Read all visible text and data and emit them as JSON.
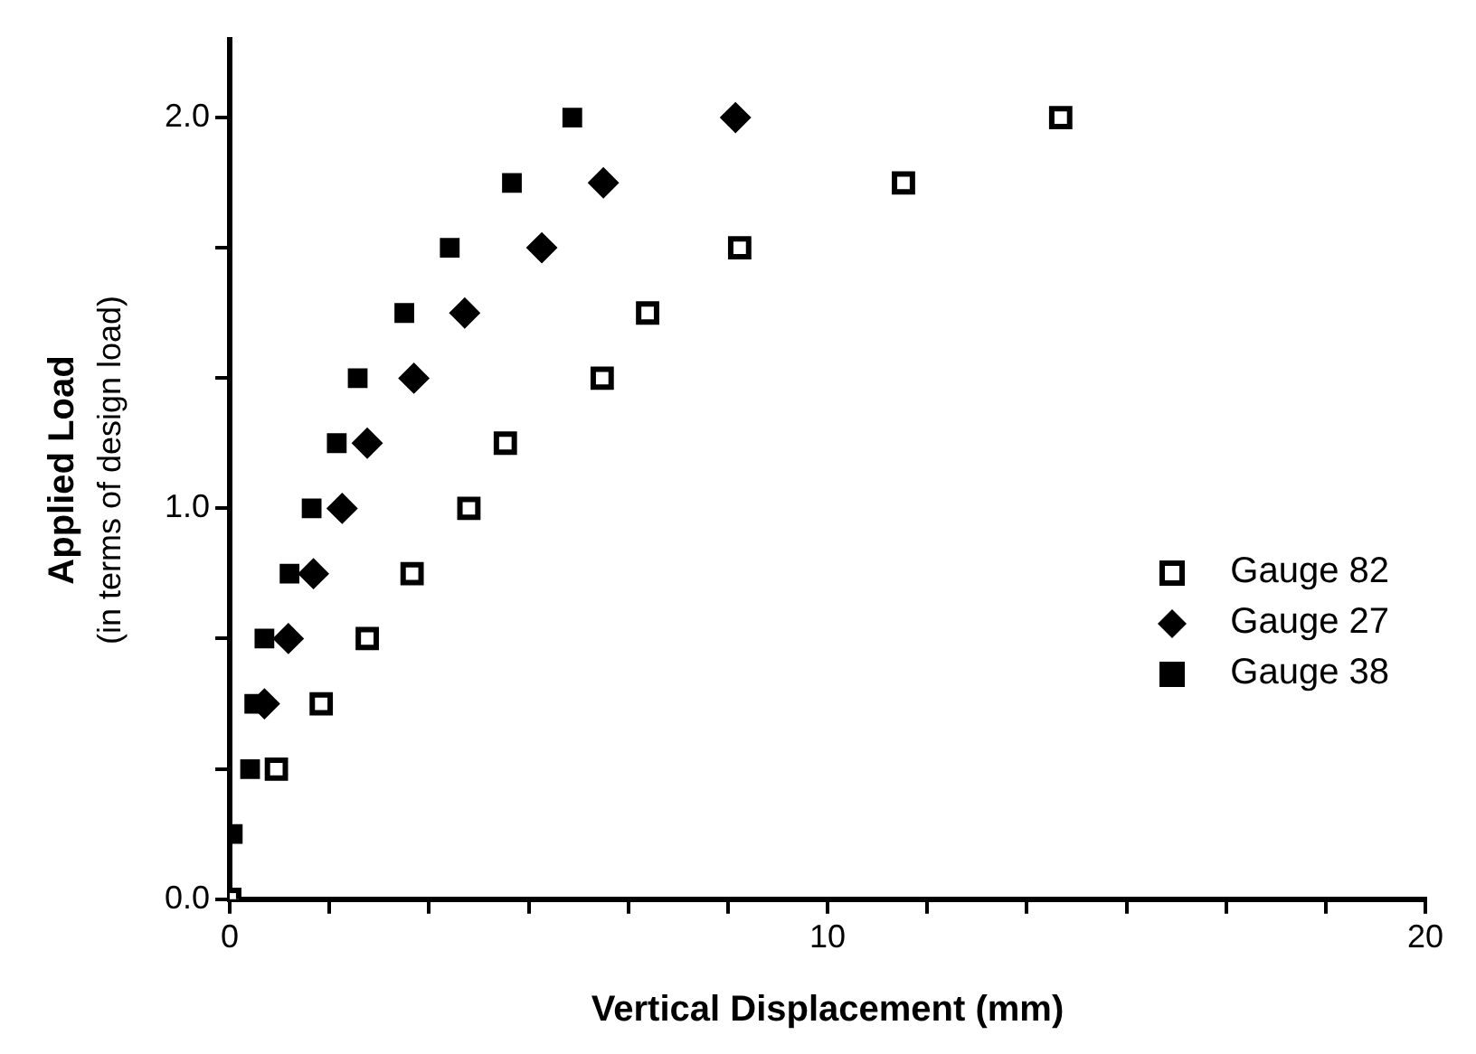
{
  "chart_data": {
    "type": "scatter",
    "xlabel": "Vertical Displacement (mm)",
    "ylabel": "Applied Load\n(in terms of design load)",
    "xlim": [
      0,
      20
    ],
    "ylim": [
      0,
      2.2
    ],
    "xticks": [
      0,
      {
        "value": 1.667,
        "label": null
      },
      {
        "value": 3.333,
        "label": null
      },
      {
        "value": 5,
        "label": null
      },
      {
        "value": 6.667,
        "label": null
      },
      {
        "value": 8.333,
        "label": null
      },
      10,
      {
        "value": 11.667,
        "label": null
      },
      {
        "value": 13.333,
        "label": null
      },
      {
        "value": 15,
        "label": null
      },
      {
        "value": 16.667,
        "label": null
      },
      {
        "value": 18.333,
        "label": null
      },
      20
    ],
    "yticks": [
      {
        "value": 0,
        "label": "0.0"
      },
      {
        "value": 0.333,
        "label": null
      },
      {
        "value": 0.667,
        "label": null
      },
      {
        "value": 1,
        "label": "1.0"
      },
      {
        "value": 1.333,
        "label": null
      },
      {
        "value": 1.667,
        "label": null
      },
      {
        "value": 2,
        "label": "2.0"
      }
    ],
    "grid": false,
    "legend": "right",
    "series": [
      {
        "name": "Gauge 82",
        "color": "#000000",
        "marker": "square",
        "x": [
          0,
          0.78,
          1.53,
          2.3,
          3.05,
          4.0,
          4.61,
          6.23,
          6.99,
          8.53,
          11.27,
          13.9
        ],
        "values": [
          0,
          0.333,
          0.5,
          0.667,
          0.833,
          1,
          1.167,
          1.333,
          1.5,
          1.667,
          1.833,
          2
        ]
      },
      {
        "name": "Gauge 27",
        "color": "#000000",
        "marker": "diamond",
        "x": [
          0.58,
          0.98,
          1.4,
          1.88,
          2.3,
          3.08,
          3.93,
          5.22,
          6.25,
          8.46
        ],
        "values": [
          0.5,
          0.667,
          0.833,
          1,
          1.167,
          1.333,
          1.5,
          1.667,
          1.833,
          2
        ]
      },
      {
        "name": "Gauge 38",
        "color": "#000000",
        "marker": "square",
        "x": [
          0.05,
          0.34,
          0.41,
          0.58,
          1.0,
          1.37,
          1.79,
          2.14,
          2.92,
          3.68,
          4.72,
          5.73
        ],
        "values": [
          0.167,
          0.333,
          0.5,
          0.667,
          0.833,
          1,
          1.167,
          1.333,
          1.5,
          1.667,
          1.833,
          2
        ]
      }
    ]
  }
}
